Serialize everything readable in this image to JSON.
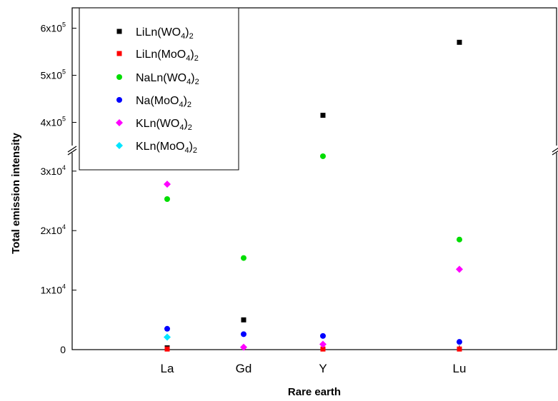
{
  "chart_data": {
    "type": "scatter",
    "xlabel": "Rare earth",
    "ylabel": "Total emission intensity",
    "categories": [
      "La",
      "Gd",
      "Y",
      "Lu"
    ],
    "axis_break": true,
    "lower_ylim": [
      0,
      35000
    ],
    "upper_ylim": [
      350000,
      650000
    ],
    "lower_ticks": [
      {
        "value": 0,
        "base": "0",
        "exp": ""
      },
      {
        "value": 10000,
        "base": "1x10",
        "exp": "4"
      },
      {
        "value": 20000,
        "base": "2x10",
        "exp": "4"
      },
      {
        "value": 30000,
        "base": "3x10",
        "exp": "4"
      }
    ],
    "upper_ticks": [
      {
        "value": 400000,
        "base": "4x10",
        "exp": "5"
      },
      {
        "value": 500000,
        "base": "5x10",
        "exp": "5"
      },
      {
        "value": 600000,
        "base": "6x10",
        "exp": "5"
      }
    ],
    "legend_position": "top-left",
    "series": [
      {
        "name": "LiLn(WO4)2",
        "label": {
          "a": "LiLn(WO",
          "s1": "4",
          "b": ")",
          "s2": "2"
        },
        "color": "#000000",
        "marker": "square",
        "values": [
          300,
          5000,
          415000,
          570000
        ]
      },
      {
        "name": "LiLn(MoO4)2",
        "label": {
          "a": "LiLn(MoO",
          "s1": "4",
          "b": ")",
          "s2": "2"
        },
        "color": "#ff0000",
        "marker": "square",
        "values": [
          100,
          null,
          100,
          100
        ]
      },
      {
        "name": "NaLn(WO4)2",
        "label": {
          "a": "NaLn(WO",
          "s1": "4",
          "b": ")",
          "s2": "2"
        },
        "color": "#00dd00",
        "marker": "circle",
        "values": [
          25300,
          15400,
          32500,
          18500
        ]
      },
      {
        "name": "Na(MoO4)2",
        "label": {
          "a": "Na(MoO",
          "s1": "4",
          "b": ")",
          "s2": "2"
        },
        "color": "#0000ff",
        "marker": "circle",
        "values": [
          3500,
          2600,
          2300,
          1300
        ]
      },
      {
        "name": "KLn(WO4)2",
        "label": {
          "a": "KLn(WO",
          "s1": "4",
          "b": ")",
          "s2": "2"
        },
        "color": "#ff00ff",
        "marker": "diamond",
        "values": [
          27800,
          400,
          900,
          13500
        ]
      },
      {
        "name": "KLn(MoO4)2",
        "label": {
          "a": "KLn(MoO",
          "s1": "4",
          "b": ")",
          "s2": "2"
        },
        "color": "#00e5ff",
        "marker": "diamond",
        "values": [
          2100,
          null,
          null,
          null
        ]
      }
    ]
  }
}
